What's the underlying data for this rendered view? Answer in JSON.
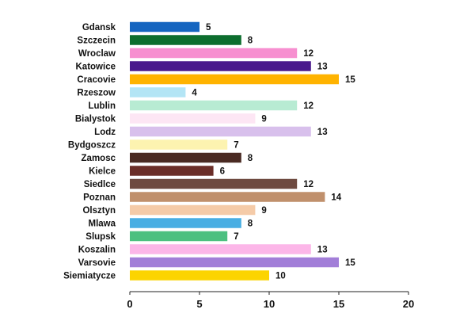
{
  "chart_data": {
    "type": "bar",
    "orientation": "horizontal",
    "title": "",
    "xlabel": "",
    "ylabel": "",
    "xlim": [
      0,
      20
    ],
    "x_ticks": [
      0,
      5,
      10,
      15,
      20
    ],
    "grid": false,
    "categories": [
      "Gdansk",
      "Szczecin",
      "Wroclaw",
      "Katowice",
      "Cracovie",
      "Rzeszow",
      "Lublin",
      "Bialystok",
      "Lodz",
      "Bydgoszcz",
      "Zamosc",
      "Kielce",
      "Siedlce",
      "Poznan",
      "Olsztyn",
      "Mlawa",
      "Slupsk",
      "Koszalin",
      "Varsovie",
      "Siemiatycze"
    ],
    "values": [
      5,
      8,
      12,
      13,
      15,
      4,
      12,
      9,
      13,
      7,
      8,
      6,
      12,
      14,
      9,
      8,
      7,
      13,
      15,
      10
    ],
    "colors": [
      "#1565c0",
      "#0d6e2e",
      "#f78fd0",
      "#4a1a8c",
      "#ffb300",
      "#b3e5f5",
      "#b8ebd3",
      "#fde6f4",
      "#d8c0ec",
      "#fdf3b0",
      "#4a2a22",
      "#6b2e28",
      "#6e4a40",
      "#c0906c",
      "#f5cba8",
      "#48aee3",
      "#4cc080",
      "#fcb6e8",
      "#a27ed8",
      "#fcd400"
    ]
  }
}
